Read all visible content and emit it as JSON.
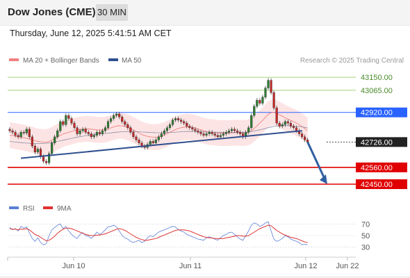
{
  "header": {
    "title": "Dow Jones (CME)",
    "timeframe": "30 MIN",
    "datetime": "Thursday, June 12, 2025 5:41:51 AM CET"
  },
  "legend": {
    "ma20_label": "MA 20 + Bollinger Bands",
    "ma50_label": "MA 50",
    "credit": "Research © 2025 Trading Central",
    "rsi_label": "RSI",
    "rsi_ma_label": "9MA"
  },
  "colors": {
    "ma20": "#f08080",
    "ma50": "#2f4f8f",
    "bollinger_fill": "#fde4e4",
    "candle_up": "#2e7d32",
    "candle_down": "#c62828",
    "resistance_green": "#a5d07a",
    "pivot_blue": "#2962ff",
    "support_red": "#e00000",
    "current_price": "#222222",
    "trendline": "#2f4f8f",
    "arrow": "#2f5fa0",
    "rsi": "#5b7fd6",
    "rsi_ma": "#e03030"
  },
  "chart_data": [
    {
      "type": "candlestick",
      "title": "Dow Jones (CME) 30 MIN",
      "x_ticks": [
        "Jun 10",
        "Jun 11",
        "Jun 12",
        "Jun 22"
      ],
      "ylim": [
        42400,
        43210
      ],
      "levels": [
        {
          "value": 43150.0,
          "label": "43150.00",
          "role": "resistance"
        },
        {
          "value": 43065.0,
          "label": "43065.00",
          "role": "resistance"
        },
        {
          "value": 42920.0,
          "label": "42920.00",
          "role": "pivot"
        },
        {
          "value": 42726.0,
          "label": "42726.00",
          "role": "current"
        },
        {
          "value": 42560.0,
          "label": "42560.00",
          "role": "support"
        },
        {
          "value": 42450.0,
          "label": "42450.00",
          "role": "support"
        }
      ],
      "closes": [
        42800,
        42790,
        42770,
        42760,
        42790,
        42785,
        42810,
        42760,
        42700,
        42660,
        42680,
        42630,
        42600,
        42590,
        42650,
        42720,
        42760,
        42800,
        42860,
        42840,
        42900,
        42880,
        42850,
        42820,
        42780,
        42800,
        42810,
        42790,
        42780,
        42760,
        42770,
        42790,
        42780,
        42800,
        42820,
        42860,
        42880,
        42900,
        42910,
        42890,
        42860,
        42840,
        42820,
        42790,
        42760,
        42740,
        42720,
        42700,
        42690,
        42710,
        42730,
        42720,
        42740,
        42760,
        42780,
        42800,
        42820,
        42840,
        42870,
        42880,
        42870,
        42860,
        42850,
        42830,
        42820,
        42810,
        42800,
        42790,
        42780,
        42770,
        42780,
        42790,
        42780,
        42770,
        42760,
        42770,
        42780,
        42790,
        42800,
        42810,
        42800,
        42790,
        42780,
        42760,
        42790,
        42820,
        42900,
        42960,
        43000,
        42980,
        43020,
        43080,
        43130,
        43050,
        42950,
        42850,
        42830,
        42840,
        42860,
        42850,
        42830,
        42820,
        42800,
        42780,
        42760,
        42740,
        42726
      ],
      "ma20": [
        42770,
        42768,
        42765,
        42760,
        42758,
        42755,
        42750,
        42745,
        42740,
        42735,
        42730,
        42728,
        42726,
        42725,
        42730,
        42740,
        42750,
        42760,
        42770,
        42778,
        42785,
        42790,
        42795,
        42800,
        42805,
        42808,
        42810,
        42812,
        42812,
        42810,
        42808,
        42806,
        42805,
        42806,
        42808,
        42812,
        42818,
        42825,
        42830,
        42833,
        42832,
        42828,
        42822,
        42815,
        42805,
        42795,
        42785,
        42775,
        42768,
        42763,
        42760,
        42758,
        42758,
        42760,
        42765,
        42772,
        42780,
        42790,
        42800,
        42808,
        42815,
        42820,
        42823,
        42825,
        42824,
        42822,
        42818,
        42812,
        42806,
        42800,
        42795,
        42792,
        42790,
        42788,
        42786,
        42785,
        42784,
        42784,
        42785,
        42786,
        42787,
        42787,
        42786,
        42785,
        42786,
        42790,
        42800,
        42815,
        42832,
        42850,
        42868,
        42888,
        42908,
        42918,
        42920,
        42915,
        42905,
        42895,
        42885,
        42876,
        42868,
        42860,
        42850,
        42840,
        42828,
        42815,
        42800
      ],
      "ma50": [
        42730,
        42728,
        42726,
        42724,
        42722,
        42720,
        42719,
        42718,
        42717,
        42716,
        42716,
        42716,
        42717,
        42718,
        42720,
        42723,
        42726,
        42730,
        42734,
        42738,
        42742,
        42746,
        42750,
        42754,
        42758,
        42761,
        42764,
        42767,
        42770,
        42772,
        42774,
        42776,
        42778,
        42780,
        42782,
        42784,
        42786,
        42788,
        42790,
        42792,
        42793,
        42794,
        42795,
        42795,
        42795,
        42794,
        42793,
        42792,
        42791,
        42790,
        42789,
        42788,
        42787,
        42787,
        42787,
        42787,
        42788,
        42789,
        42790,
        42791,
        42792,
        42793,
        42794,
        42795,
        42795,
        42795,
        42795,
        42794,
        42794,
        42793,
        42792,
        42792,
        42791,
        42790,
        42790,
        42790,
        42789,
        42789,
        42789,
        42789,
        42789,
        42790,
        42790,
        42790,
        42791,
        42792,
        42795,
        42798,
        42802,
        42806,
        42810,
        42815,
        42820,
        42824,
        42828,
        42830,
        42832,
        42833,
        42833,
        42833,
        42832,
        42831,
        42829,
        42827,
        42825,
        42822,
        42818
      ],
      "bollinger_width": 85,
      "trendline": [
        {
          "x_index": 4,
          "value": 42620
        },
        {
          "x_index": 104,
          "value": 42800
        }
      ],
      "forecast_arrow": [
        {
          "x_index": 106,
          "value": 42726
        },
        {
          "x_index": 113,
          "value": 42450
        }
      ]
    },
    {
      "type": "line",
      "title": "RSI",
      "ylim": [
        20,
        80
      ],
      "y_ticks": [
        70,
        50,
        30
      ],
      "series": [
        {
          "name": "RSI",
          "values": [
            64,
            60,
            62,
            58,
            66,
            63,
            65,
            55,
            45,
            40,
            46,
            38,
            34,
            36,
            50,
            60,
            64,
            68,
            70,
            62,
            66,
            58,
            52,
            48,
            45,
            52,
            55,
            50,
            49,
            45,
            50,
            56,
            52,
            55,
            60,
            65,
            66,
            68,
            65,
            58,
            50,
            46,
            44,
            40,
            38,
            40,
            42,
            38,
            40,
            46,
            50,
            48,
            52,
            56,
            58,
            60,
            62,
            64,
            66,
            65,
            60,
            58,
            56,
            52,
            50,
            48,
            46,
            44,
            43,
            42,
            46,
            48,
            46,
            44,
            42,
            46,
            50,
            52,
            55,
            56,
            52,
            48,
            44,
            42,
            50,
            58,
            68,
            72,
            70,
            66,
            68,
            72,
            74,
            58,
            44,
            40,
            42,
            45,
            50,
            48,
            44,
            42,
            40,
            38,
            34,
            35,
            34
          ]
        },
        {
          "name": "9MA",
          "values": [
            62,
            61,
            61,
            60,
            61,
            61,
            62,
            60,
            56,
            52,
            50,
            47,
            44,
            41,
            42,
            45,
            49,
            54,
            58,
            61,
            63,
            63,
            62,
            60,
            58,
            56,
            54,
            52,
            51,
            50,
            50,
            51,
            51,
            52,
            53,
            55,
            57,
            59,
            61,
            62,
            61,
            59,
            56,
            53,
            50,
            47,
            45,
            43,
            42,
            42,
            43,
            44,
            45,
            47,
            49,
            51,
            53,
            55,
            57,
            59,
            60,
            60,
            60,
            59,
            58,
            56,
            54,
            52,
            50,
            48,
            47,
            46,
            46,
            45,
            45,
            45,
            45,
            46,
            47,
            48,
            49,
            50,
            50,
            49,
            49,
            50,
            53,
            56,
            59,
            62,
            64,
            66,
            68,
            67,
            63,
            59,
            56,
            53,
            51,
            49,
            47,
            46,
            45,
            43,
            41,
            39,
            38
          ]
        }
      ]
    }
  ]
}
